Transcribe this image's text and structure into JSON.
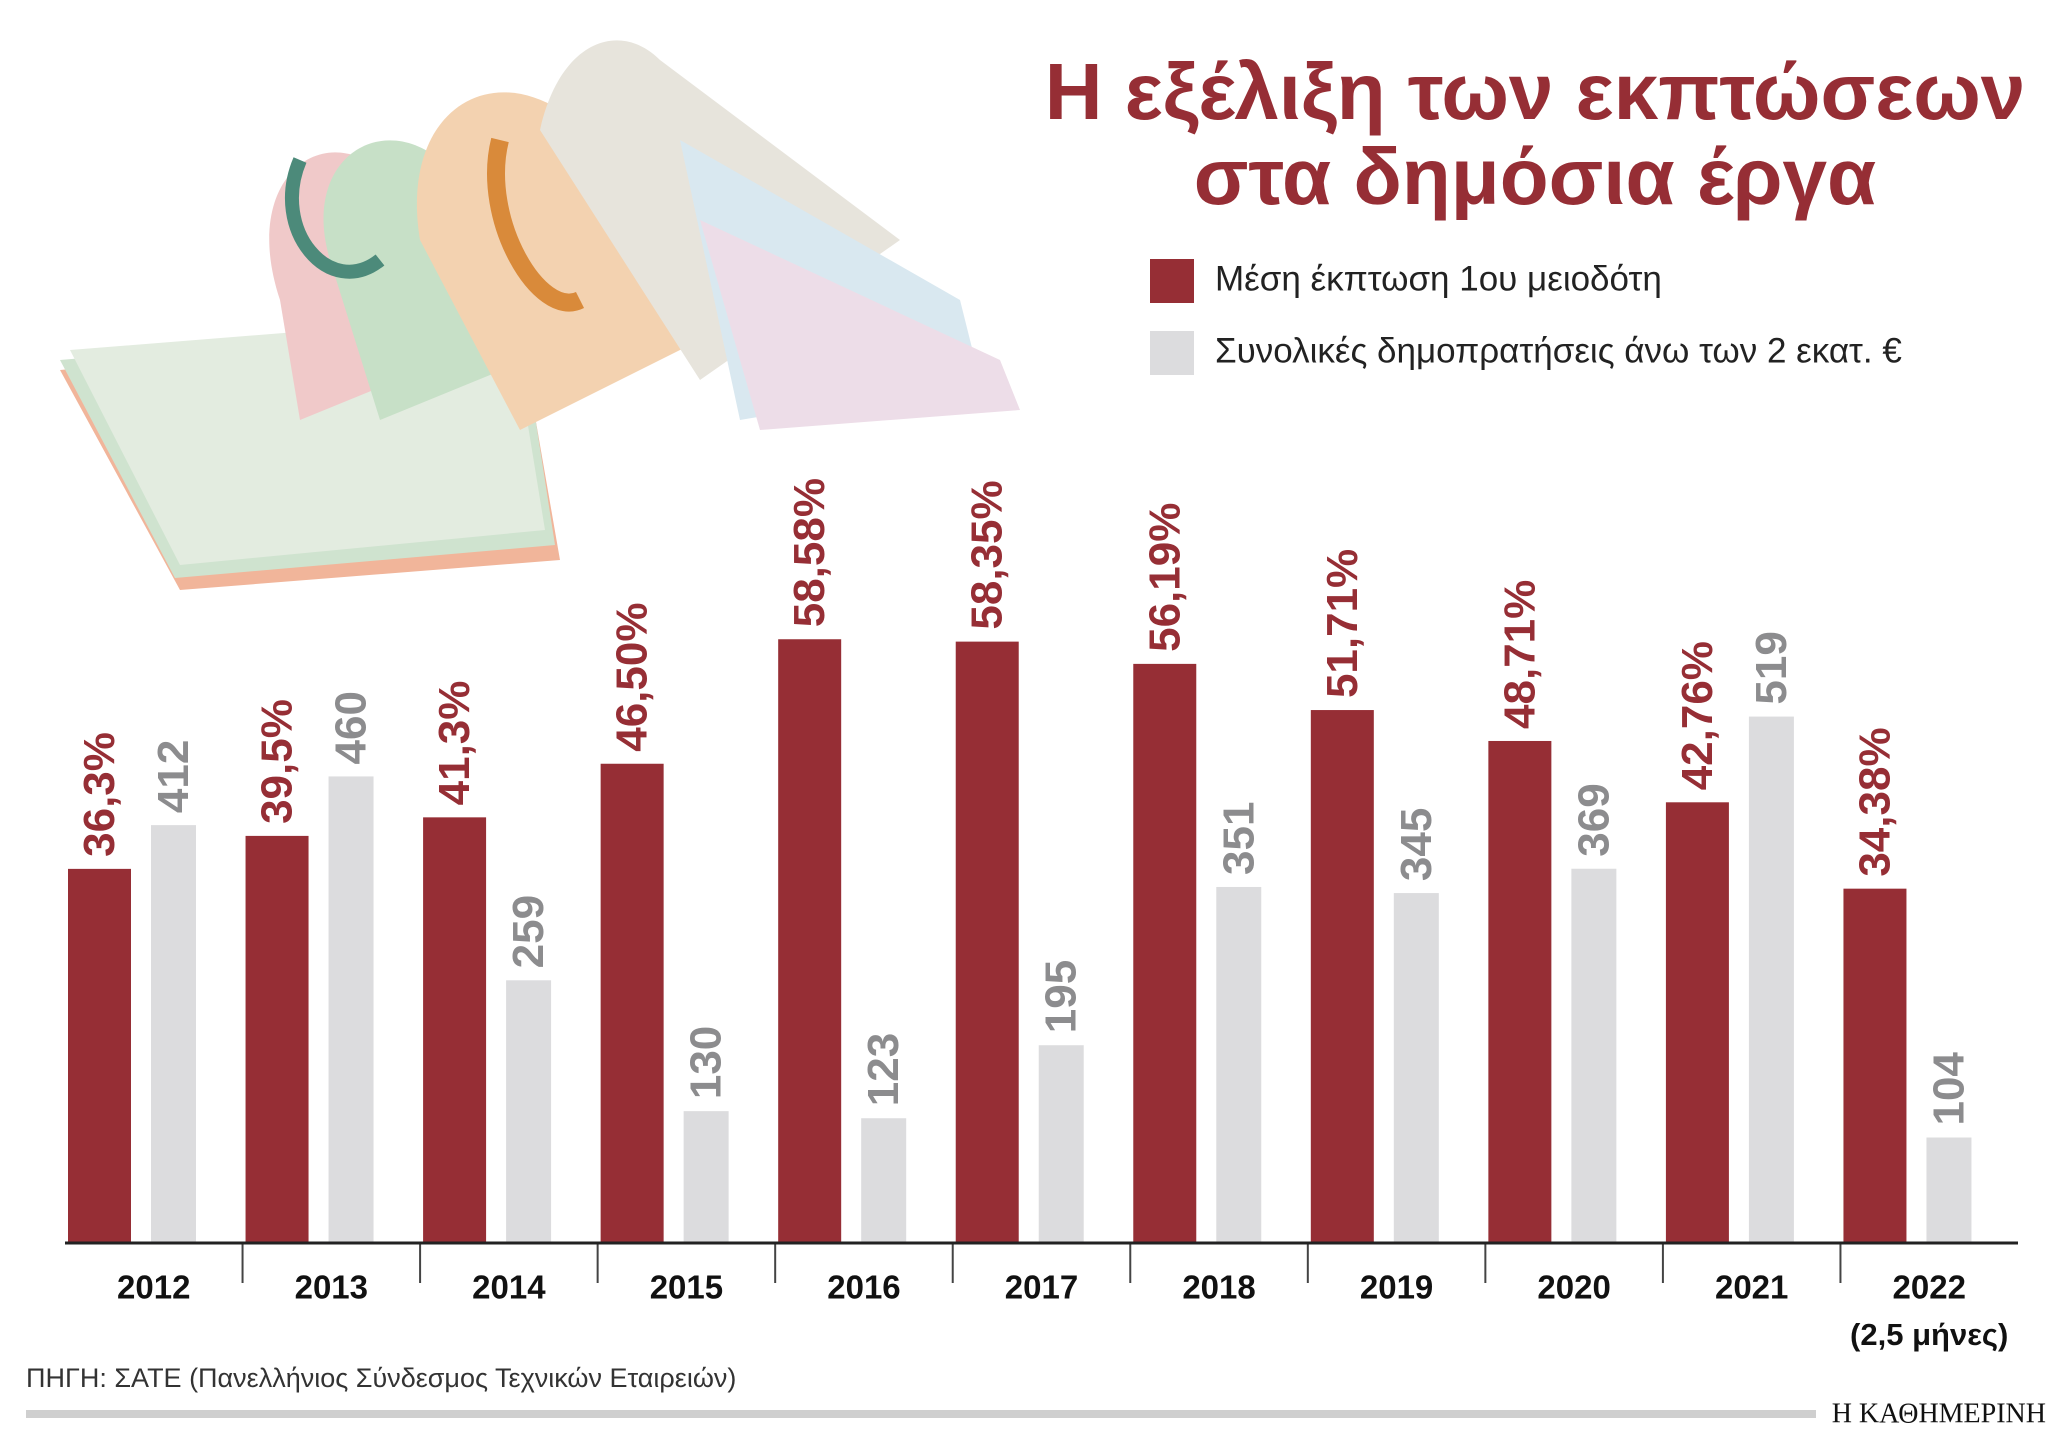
{
  "chart_data": {
    "type": "bar",
    "title": [
      "Η εξέλιξη των εκπτώσεων",
      "στα δημόσια έργα"
    ],
    "categories": [
      "2012",
      "2013",
      "2014",
      "2015",
      "2016",
      "2017",
      "2018",
      "2019",
      "2020",
      "2021",
      "2022"
    ],
    "annotations": [
      {
        "category": 10,
        "text": "(2,5 μήνες)"
      }
    ],
    "series": [
      {
        "name": "Μέση έκπτωση 1ου μειοδότη",
        "color": "#962e35",
        "values": [
          36.3,
          39.5,
          41.3,
          46.5,
          58.58,
          58.35,
          56.19,
          51.71,
          48.71,
          42.76,
          34.38
        ],
        "value_labels": [
          "36,3%",
          "39,5%",
          "41,3%",
          "46,50%",
          "58,58%",
          "58,35%",
          "56,19%",
          "51,71%",
          "48,71%",
          "42,76%",
          "34,38%"
        ]
      },
      {
        "name": "Συνολικές δημοπρατήσεις άνω των 2 εκατ. €",
        "color": "#dcdcde",
        "axis": "y2",
        "values": [
          412,
          460,
          259,
          130,
          123,
          195,
          351,
          345,
          369,
          519,
          104
        ]
      }
    ],
    "ylim": [
      0,
      62
    ],
    "y2lim": [
      0,
      630
    ],
    "source": "ΠΗΓΗ: ΣΑΤΕ (Πανελλήνιος Σύνδεσμος Τεχνικών Εταιρειών)",
    "publisher": "Η ΚΑΘΗΜΕΡΙΝΗ"
  }
}
